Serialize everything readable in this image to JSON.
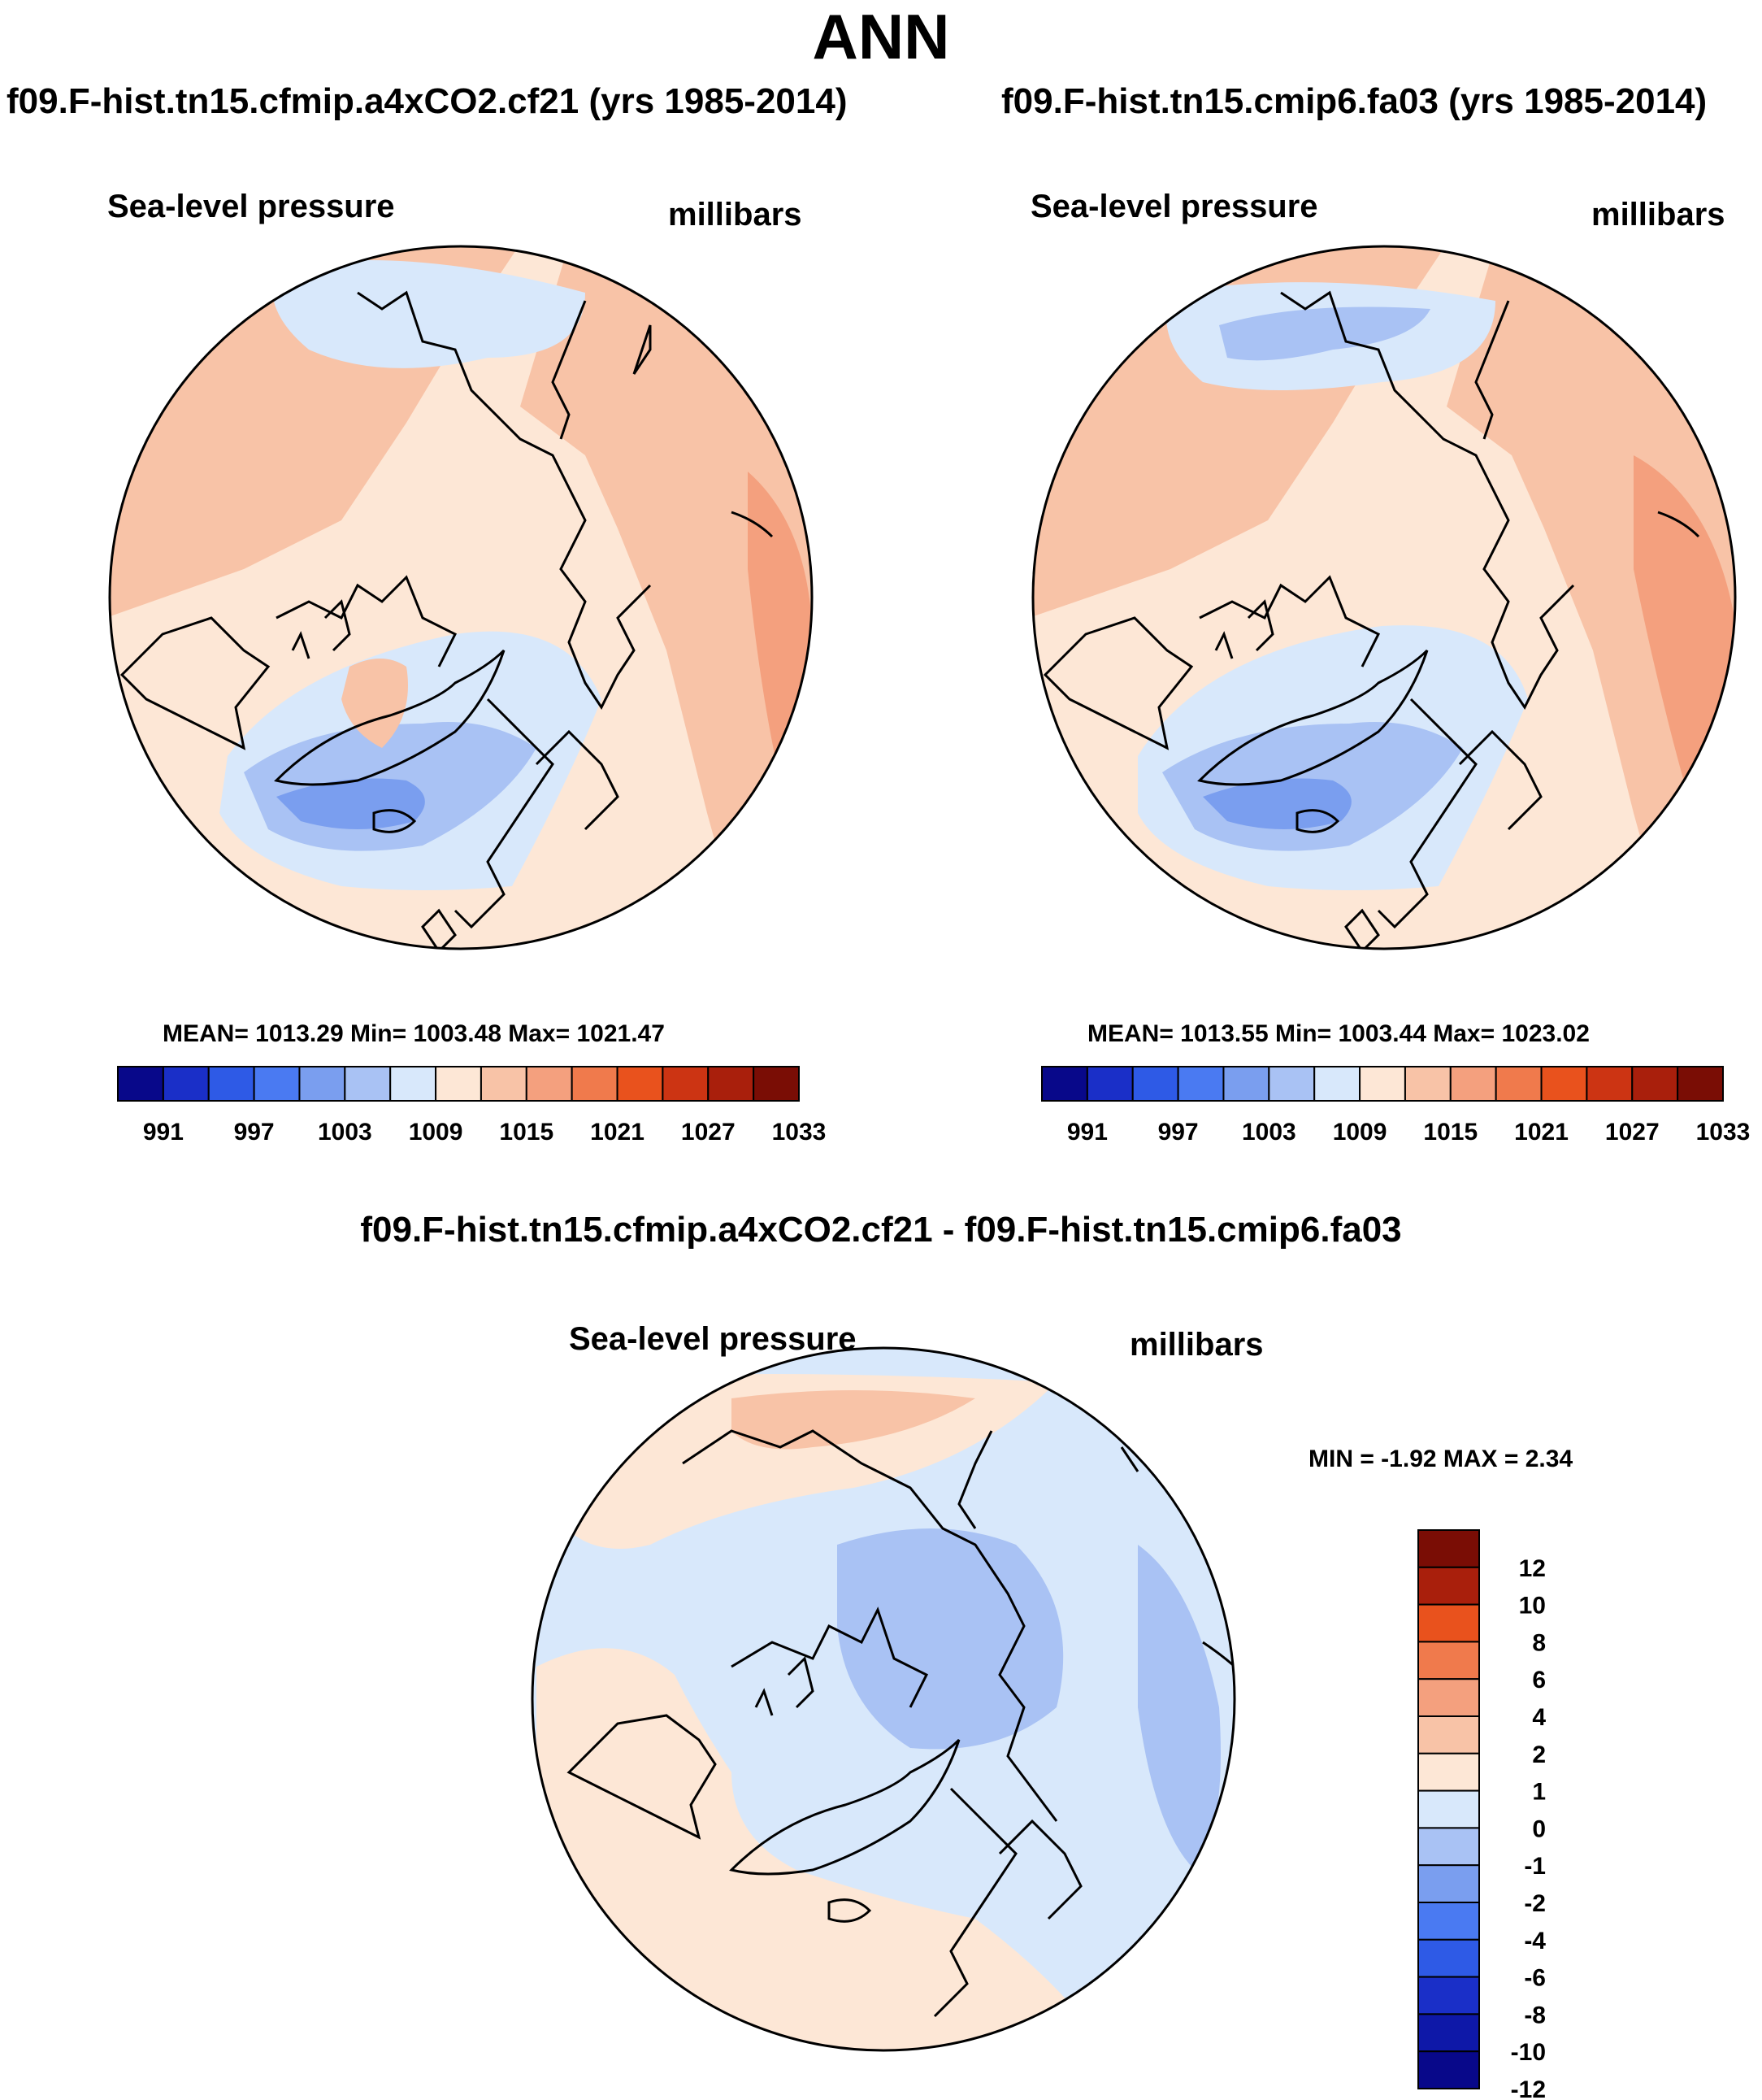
{
  "title": "ANN",
  "panels": [
    {
      "case_title": "f09.F-hist.tn15.cfmip.a4xCO2.cf21 (yrs 1985-2014)",
      "variable": "Sea-level pressure",
      "units": "millibars",
      "stats": "MEAN= 1013.29  Min= 1003.48  Max= 1021.47"
    },
    {
      "case_title": "f09.F-hist.tn15.cmip6.fa03 (yrs 1985-2014)",
      "variable": "Sea-level pressure",
      "units": "millibars",
      "stats": "MEAN= 1013.55  Min= 1003.44  Max= 1023.02"
    }
  ],
  "abs_colorbar": {
    "labels": [
      "991",
      "997",
      "1003",
      "1009",
      "1015",
      "1021",
      "1027",
      "1033"
    ],
    "colors": [
      "#08088a",
      "#1a2fc8",
      "#2e5ae6",
      "#4a7af2",
      "#7a9eef",
      "#a9c2f4",
      "#d8e8fb",
      "#fde7d6",
      "#f8c3a7",
      "#f4a07e",
      "#f07a4c",
      "#e9521d",
      "#cc3413",
      "#a91f0c",
      "#7a0d05"
    ]
  },
  "diff_panel": {
    "title": "f09.F-hist.tn15.cfmip.a4xCO2.cf21 - f09.F-hist.tn15.cmip6.fa03",
    "variable": "Sea-level pressure",
    "units": "millibars",
    "stats": "MIN =  -1.92 MAX =   2.34"
  },
  "diff_colorbar": {
    "labels": [
      "12",
      "10",
      "8",
      "6",
      "4",
      "2",
      "1",
      "0",
      "-1",
      "-2",
      "-4",
      "-6",
      "-8",
      "-10",
      "-12"
    ],
    "colors": [
      "#7a0d05",
      "#a91f0c",
      "#e9521d",
      "#f07a4c",
      "#f4a07e",
      "#f8c3a7",
      "#fde7d6",
      "#d8e8fb",
      "#a9c2f4",
      "#7a9eef",
      "#4a7af2",
      "#2e5ae6",
      "#1a2fc8",
      "#0e18a8",
      "#08088a"
    ]
  },
  "map_colors": {
    "ocean_neutral": "#fde7d6",
    "pos1": "#f8c3a7",
    "pos2": "#f4a07e",
    "neg1": "#d8e8fb",
    "neg2": "#a9c2f4",
    "neg3": "#7a9eef"
  }
}
